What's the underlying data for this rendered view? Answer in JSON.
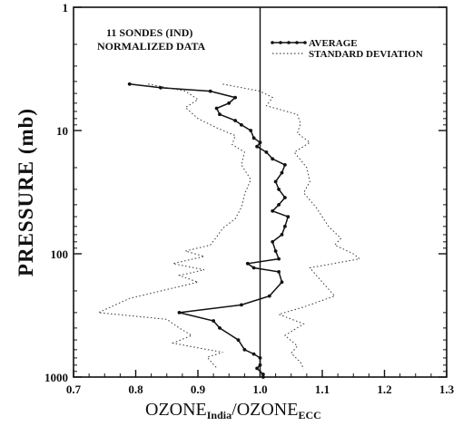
{
  "chart_data": {
    "type": "line",
    "title": "",
    "inset_text": [
      "11 SONDES (IND)",
      "NORMALIZED DATA"
    ],
    "xlabel": {
      "main_left": "OZONE",
      "sub_left": "India",
      "slash": "/",
      "main_right": "OZONE",
      "sub_right": "ECC"
    },
    "ylabel": "PRESSURE (mb)",
    "xlim": [
      0.7,
      1.3
    ],
    "ylim": [
      1000,
      1
    ],
    "yscale": "log",
    "x_ticks": [
      "0.7",
      "0.8",
      "0.9",
      "1.0",
      "1.1",
      "1.2",
      "1.3"
    ],
    "x_tick_values": [
      0.7,
      0.8,
      0.9,
      1.0,
      1.1,
      1.2,
      1.3
    ],
    "y_ticks": [
      "1",
      "10",
      "100",
      "1000"
    ],
    "y_tick_values": [
      1,
      10,
      100,
      1000
    ],
    "reference_line_x": 1.0,
    "legend_position": "top-right",
    "legend": [
      {
        "label": "AVERAGE",
        "style": "solid-with-markers"
      },
      {
        "label": "STANDARD DEVIATION",
        "style": "dotted"
      }
    ],
    "series": [
      {
        "name": "AVERAGE",
        "style": "solid-with-markers",
        "points": [
          [
            0.79,
            4.2
          ],
          [
            0.84,
            4.5
          ],
          [
            0.92,
            4.8
          ],
          [
            0.96,
            5.4
          ],
          [
            0.95,
            6.0
          ],
          [
            0.93,
            6.6
          ],
          [
            0.935,
            7.4
          ],
          [
            0.96,
            8.3
          ],
          [
            0.97,
            9.0
          ],
          [
            0.985,
            10
          ],
          [
            0.99,
            11.5
          ],
          [
            1.0,
            12.5
          ],
          [
            0.995,
            13.5
          ],
          [
            1.01,
            15
          ],
          [
            1.02,
            17
          ],
          [
            1.04,
            19
          ],
          [
            1.035,
            22
          ],
          [
            1.025,
            26
          ],
          [
            1.03,
            30
          ],
          [
            1.04,
            35
          ],
          [
            1.03,
            40
          ],
          [
            1.02,
            45
          ],
          [
            1.045,
            50
          ],
          [
            1.04,
            60
          ],
          [
            1.035,
            70
          ],
          [
            1.02,
            80
          ],
          [
            1.025,
            95
          ],
          [
            1.03,
            110
          ],
          [
            0.98,
            120
          ],
          [
            0.99,
            130
          ],
          [
            1.03,
            140
          ],
          [
            1.035,
            170
          ],
          [
            1.015,
            220
          ],
          [
            0.97,
            260
          ],
          [
            0.87,
            300
          ],
          [
            0.925,
            350
          ],
          [
            0.935,
            400
          ],
          [
            0.965,
            500
          ],
          [
            0.975,
            600
          ],
          [
            0.99,
            650
          ],
          [
            1.0,
            700
          ],
          [
            1.0,
            800
          ],
          [
            0.995,
            850
          ],
          [
            1.005,
            950
          ],
          [
            1.005,
            1000
          ]
        ]
      },
      {
        "name": "STANDARD DEVIATION",
        "style": "dotted",
        "points": [
          [
            0.82,
            4.2
          ],
          [
            0.88,
            4.8
          ],
          [
            0.9,
            5.6
          ],
          [
            0.88,
            6.5
          ],
          [
            0.9,
            8.0
          ],
          [
            0.93,
            9.5
          ],
          [
            0.96,
            11
          ],
          [
            0.955,
            13
          ],
          [
            0.975,
            15
          ],
          [
            0.97,
            19
          ],
          [
            0.985,
            25
          ],
          [
            0.975,
            33
          ],
          [
            0.97,
            42
          ],
          [
            0.96,
            52
          ],
          [
            0.94,
            62
          ],
          [
            0.93,
            73
          ],
          [
            0.92,
            85
          ],
          [
            0.88,
            95
          ],
          [
            0.91,
            105
          ],
          [
            0.86,
            120
          ],
          [
            0.91,
            135
          ],
          [
            0.87,
            150
          ],
          [
            0.9,
            170
          ],
          [
            0.79,
            230
          ],
          [
            0.74,
            300
          ],
          [
            0.85,
            340
          ],
          [
            0.87,
            400
          ],
          [
            0.89,
            460
          ],
          [
            0.86,
            530
          ],
          [
            0.9,
            580
          ],
          [
            0.94,
            630
          ],
          [
            0.915,
            690
          ],
          [
            0.925,
            790
          ],
          [
            0.93,
            840
          ]
        ]
      },
      {
        "name": "STANDARD DEVIATION",
        "style": "dotted",
        "points": [
          [
            0.94,
            4.2
          ],
          [
            1.0,
            4.8
          ],
          [
            1.02,
            5.4
          ],
          [
            1.01,
            6.3
          ],
          [
            1.06,
            7.4
          ],
          [
            1.065,
            8.8
          ],
          [
            1.06,
            10.5
          ],
          [
            1.08,
            12.5
          ],
          [
            1.055,
            15
          ],
          [
            1.075,
            20
          ],
          [
            1.08,
            26
          ],
          [
            1.07,
            32
          ],
          [
            1.09,
            42
          ],
          [
            1.11,
            60
          ],
          [
            1.13,
            75
          ],
          [
            1.12,
            85
          ],
          [
            1.15,
            100
          ],
          [
            1.16,
            110
          ],
          [
            1.08,
            130
          ],
          [
            1.1,
            170
          ],
          [
            1.12,
            220
          ],
          [
            1.07,
            270
          ],
          [
            1.03,
            310
          ],
          [
            1.07,
            370
          ],
          [
            1.04,
            460
          ],
          [
            1.06,
            560
          ],
          [
            1.05,
            640
          ],
          [
            1.065,
            760
          ],
          [
            1.07,
            860
          ]
        ]
      }
    ]
  }
}
